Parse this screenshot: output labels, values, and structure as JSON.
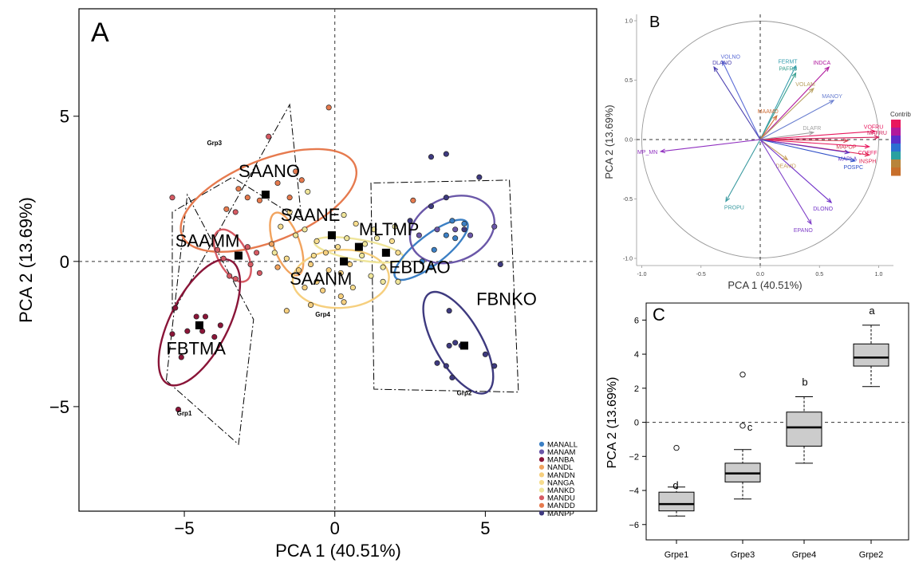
{
  "panel_labels": {
    "a": "A",
    "b": "B",
    "c": "C"
  },
  "colors": {
    "MANALL": "#3b7fc4",
    "MANAM": "#6a57a8",
    "MANBA": "#8a1538",
    "NANDL": "#f1a35e",
    "MANDN": "#f6cf7e",
    "NANGA": "#f7dd8e",
    "MANKD": "#efe59a",
    "MANDU": "#d65a63",
    "MANDD": "#e67a4e",
    "MANPP": "#3e3a7f",
    "centroid": "#000000"
  },
  "chart_data": [
    {
      "id": "pca-individuals",
      "type": "scatter",
      "title": "",
      "xlabel": "PCA 1 (40.51%)",
      "ylabel": "PCA 2 (13.69%)",
      "xlim": [
        -8.5,
        8.7
      ],
      "ylim": [
        -8.6,
        8.7
      ],
      "xticks": [
        -5,
        0,
        5
      ],
      "yticks": [
        -5,
        0,
        5
      ],
      "grid": false,
      "legend_position": "bottom-right",
      "legend": [
        "MANALL",
        "MANAM",
        "MANBA",
        "NANDL",
        "MANDN",
        "NANGA",
        "MANKD",
        "MANDU",
        "MANDD",
        "MANPP"
      ],
      "points": [
        {
          "x": -5.2,
          "y": -5.1,
          "c": "MANBA"
        },
        {
          "x": -5.4,
          "y": -2.5,
          "c": "MANBA"
        },
        {
          "x": -5.1,
          "y": -3.3,
          "c": "MANBA"
        },
        {
          "x": -4.9,
          "y": -2.4,
          "c": "MANBA"
        },
        {
          "x": -4.6,
          "y": -1.9,
          "c": "MANBA"
        },
        {
          "x": -4.3,
          "y": -1.9,
          "c": "MANBA"
        },
        {
          "x": -3.8,
          "y": -2.2,
          "c": "MANBA"
        },
        {
          "x": -5.3,
          "y": -1.6,
          "c": "MANBA"
        },
        {
          "x": -4.4,
          "y": -2.4,
          "c": "MANBA"
        },
        {
          "x": -4.0,
          "y": -2.6,
          "c": "MANBA"
        },
        {
          "x": -3.5,
          "y": -0.5,
          "c": "MANDU"
        },
        {
          "x": -3.7,
          "y": 0.1,
          "c": "MANDU"
        },
        {
          "x": -3.3,
          "y": -0.6,
          "c": "MANDU"
        },
        {
          "x": -2.8,
          "y": -0.1,
          "c": "MANDU"
        },
        {
          "x": -2.6,
          "y": 0.3,
          "c": "MANDU"
        },
        {
          "x": -2.9,
          "y": 0.5,
          "c": "MANDU"
        },
        {
          "x": -3.9,
          "y": 0.4,
          "c": "MANDU"
        },
        {
          "x": -2.5,
          "y": -0.4,
          "c": "MANDU"
        },
        {
          "x": -5.4,
          "y": 2.2,
          "c": "MANDU"
        },
        {
          "x": -3.6,
          "y": 1.8,
          "c": "MANDD"
        },
        {
          "x": -3.3,
          "y": 1.7,
          "c": "MANDU"
        },
        {
          "x": -2.9,
          "y": 2.2,
          "c": "MANDD"
        },
        {
          "x": -2.5,
          "y": 2.1,
          "c": "MANDD"
        },
        {
          "x": -2.2,
          "y": 4.3,
          "c": "MANDU"
        },
        {
          "x": -1.9,
          "y": 2.7,
          "c": "MANDD"
        },
        {
          "x": -1.3,
          "y": 3.1,
          "c": "MANDD"
        },
        {
          "x": -1.1,
          "y": 2.8,
          "c": "MANDD"
        },
        {
          "x": -1.5,
          "y": 2.2,
          "c": "MANDD"
        },
        {
          "x": -0.2,
          "y": 5.3,
          "c": "MANDD"
        },
        {
          "x": -3.2,
          "y": 2.5,
          "c": "MANDD"
        },
        {
          "x": -0.9,
          "y": 2.4,
          "c": "MANKD"
        },
        {
          "x": -1.5,
          "y": 1.7,
          "c": "NANGA"
        },
        {
          "x": -1.8,
          "y": 1.2,
          "c": "NANGA"
        },
        {
          "x": -1.3,
          "y": 0.9,
          "c": "MANKD"
        },
        {
          "x": -1.0,
          "y": 1.1,
          "c": "MANKD"
        },
        {
          "x": -0.6,
          "y": 0.7,
          "c": "NANGA"
        },
        {
          "x": -2.1,
          "y": 0.6,
          "c": "NANDL"
        },
        {
          "x": -1.9,
          "y": -0.2,
          "c": "NANDL"
        },
        {
          "x": -2.0,
          "y": 0.3,
          "c": "MANKD"
        },
        {
          "x": -1.6,
          "y": 0.1,
          "c": "NANGA"
        },
        {
          "x": -1.2,
          "y": -0.3,
          "c": "MANDN"
        },
        {
          "x": -0.8,
          "y": -0.1,
          "c": "MANDN"
        },
        {
          "x": -0.6,
          "y": -0.7,
          "c": "MANDN"
        },
        {
          "x": -1.0,
          "y": -0.9,
          "c": "MANDN"
        },
        {
          "x": -0.4,
          "y": -1.0,
          "c": "MANDN"
        },
        {
          "x": -0.2,
          "y": -0.3,
          "c": "MANDN"
        },
        {
          "x": 0.2,
          "y": -0.4,
          "c": "MANDN"
        },
        {
          "x": 0.5,
          "y": -0.1,
          "c": "MANDN"
        },
        {
          "x": -0.3,
          "y": 0.3,
          "c": "MANDN"
        },
        {
          "x": 0.1,
          "y": 0.5,
          "c": "NANGA"
        },
        {
          "x": 0.4,
          "y": 0.8,
          "c": "MANKD"
        },
        {
          "x": 0.7,
          "y": 1.3,
          "c": "NANGA"
        },
        {
          "x": 1.0,
          "y": 0.6,
          "c": "MANKD"
        },
        {
          "x": 0.9,
          "y": 0.2,
          "c": "MANKD"
        },
        {
          "x": 0.6,
          "y": -0.9,
          "c": "NANGA"
        },
        {
          "x": 0.2,
          "y": -1.2,
          "c": "MANDN"
        },
        {
          "x": -0.8,
          "y": -1.5,
          "c": "MANDN"
        },
        {
          "x": -1.6,
          "y": -1.7,
          "c": "MANDN"
        },
        {
          "x": 0.3,
          "y": -1.4,
          "c": "MANDN"
        },
        {
          "x": 1.4,
          "y": 0.8,
          "c": "MANKD"
        },
        {
          "x": 1.3,
          "y": 1.1,
          "c": "MANKD"
        },
        {
          "x": 1.6,
          "y": -0.2,
          "c": "MANKD"
        },
        {
          "x": 1.9,
          "y": 0.7,
          "c": "NANGA"
        },
        {
          "x": 1.2,
          "y": -0.5,
          "c": "MANKD"
        },
        {
          "x": 1.6,
          "y": -0.7,
          "c": "MANKD"
        },
        {
          "x": 2.1,
          "y": -0.7,
          "c": "MANKD"
        },
        {
          "x": 2.1,
          "y": 0.3,
          "c": "NANGA"
        },
        {
          "x": 0.3,
          "y": 1.6,
          "c": "MANKD"
        },
        {
          "x": -0.7,
          "y": 0.2,
          "c": "NANGA"
        },
        {
          "x": 2.0,
          "y": 1.2,
          "c": "MANKD"
        },
        {
          "x": 2.9,
          "y": 0.0,
          "c": "MANALL"
        },
        {
          "x": 3.3,
          "y": 0.4,
          "c": "MANALL"
        },
        {
          "x": 3.7,
          "y": 0.9,
          "c": "MANALL"
        },
        {
          "x": 3.9,
          "y": 1.4,
          "c": "MANALL"
        },
        {
          "x": 4.3,
          "y": 1.3,
          "c": "MANALL"
        },
        {
          "x": 3.2,
          "y": -0.2,
          "c": "MANALL"
        },
        {
          "x": 4.0,
          "y": 0.8,
          "c": "MANALL"
        },
        {
          "x": 2.6,
          "y": 2.1,
          "c": "MANDD"
        },
        {
          "x": 3.2,
          "y": 1.9,
          "c": "MANPP"
        },
        {
          "x": 3.7,
          "y": 2.2,
          "c": "MANPP"
        },
        {
          "x": 4.0,
          "y": 1.1,
          "c": "MANAM"
        },
        {
          "x": 4.5,
          "y": 0.9,
          "c": "MANAM"
        },
        {
          "x": 5.3,
          "y": 1.2,
          "c": "MANAM"
        },
        {
          "x": 3.2,
          "y": 3.6,
          "c": "MANPP"
        },
        {
          "x": 3.7,
          "y": 3.7,
          "c": "MANPP"
        },
        {
          "x": 4.8,
          "y": 2.9,
          "c": "MANPP"
        },
        {
          "x": 2.5,
          "y": 1.4,
          "c": "MANPP"
        },
        {
          "x": 4.3,
          "y": 1.1,
          "c": "MANPP"
        },
        {
          "x": 2.8,
          "y": 0.9,
          "c": "MANAM"
        },
        {
          "x": 3.4,
          "y": 1.1,
          "c": "MANAM"
        },
        {
          "x": 5.5,
          "y": -0.1,
          "c": "MANPP"
        },
        {
          "x": 3.8,
          "y": -1.7,
          "c": "MANPP"
        },
        {
          "x": 3.8,
          "y": -2.9,
          "c": "MANPP"
        },
        {
          "x": 4.0,
          "y": -2.8,
          "c": "MANPP"
        },
        {
          "x": 4.2,
          "y": -2.9,
          "c": "MANPP"
        },
        {
          "x": 3.7,
          "y": -3.6,
          "c": "MANPP"
        },
        {
          "x": 3.9,
          "y": -4.0,
          "c": "MANPP"
        },
        {
          "x": 5.0,
          "y": -3.2,
          "c": "MANPP"
        },
        {
          "x": 5.3,
          "y": -3.6,
          "c": "MANPP"
        },
        {
          "x": 3.4,
          "y": -3.5,
          "c": "MANPP"
        }
      ],
      "ellipses": [
        {
          "label": "SAANO",
          "cx": -2.2,
          "cy": 2.1,
          "rx": 3.1,
          "ry": 1.4,
          "angle": 22,
          "c": "MANDD"
        },
        {
          "label": "SAAMM",
          "cx": -3.4,
          "cy": 0.2,
          "rx": 0.95,
          "ry": 0.5,
          "angle": -62,
          "c": "MANDU"
        },
        {
          "label": "FBTMA",
          "cx": -4.5,
          "cy": -2.1,
          "rx": 2.3,
          "ry": 1.0,
          "angle": 63,
          "c": "MANBA"
        },
        {
          "label": "SAANE",
          "cx": -1.6,
          "cy": 0.6,
          "rx": 1.1,
          "ry": 0.45,
          "angle": -70,
          "c": "NANDL"
        },
        {
          "label": "SAANM",
          "cx": 0.2,
          "cy": -0.6,
          "rx": 1.6,
          "ry": 1.0,
          "angle": 3,
          "c": "MANDN"
        },
        {
          "label": "MLTMP",
          "cx": 0.8,
          "cy": 0.4,
          "rx": 1.5,
          "ry": 0.35,
          "angle": -10,
          "c": "MANKD"
        },
        {
          "label": "EBDAO",
          "cx": 3.2,
          "cy": 0.4,
          "rx": 1.5,
          "ry": 0.5,
          "angle": 38,
          "c": "MANALL"
        },
        {
          "label": "MANAM",
          "cx": 3.9,
          "cy": 1.1,
          "rx": 1.45,
          "ry": 1.1,
          "angle": 22,
          "c": "MANAM"
        },
        {
          "label": "FBNKO",
          "cx": 4.1,
          "cy": -2.8,
          "rx": 1.9,
          "ry": 0.8,
          "angle": -60,
          "c": "MANPP"
        }
      ],
      "centroids": [
        {
          "x": -2.3,
          "y": 2.3
        },
        {
          "x": -3.2,
          "y": 0.2
        },
        {
          "x": -4.5,
          "y": -2.2
        },
        {
          "x": -0.1,
          "y": 0.9
        },
        {
          "x": 0.8,
          "y": 0.5
        },
        {
          "x": 0.3,
          "y": 0.0
        },
        {
          "x": 1.7,
          "y": 0.3
        },
        {
          "x": 4.3,
          "y": -2.9
        }
      ],
      "labels": [
        {
          "text": "SAANO",
          "x": -3.2,
          "y": 2.9
        },
        {
          "text": "SAAMM",
          "x": -5.3,
          "y": 0.5
        },
        {
          "text": "SAANE",
          "x": -1.8,
          "y": 1.4
        },
        {
          "text": "MLTMP",
          "x": 0.8,
          "y": 0.9
        },
        {
          "text": "SAANM",
          "x": -1.5,
          "y": -0.8
        },
        {
          "text": "EBDAO",
          "x": 1.8,
          "y": -0.4
        },
        {
          "text": "FBNKO",
          "x": 4.7,
          "y": -1.5
        },
        {
          "text": "FBTMA",
          "x": -5.6,
          "y": -3.2
        }
      ],
      "groups": [
        {
          "label": "Grp1",
          "label_pos": [
            -5.0,
            -5.3
          ],
          "corners": [
            [
              -5.6,
              -4.1
            ],
            [
              -4.9,
              2.3
            ],
            [
              -2.7,
              -2.0
            ],
            [
              -3.2,
              -6.3
            ]
          ]
        },
        {
          "label": "Grp3",
          "label_pos": [
            -4.0,
            4.0
          ],
          "corners": [
            [
              -5.4,
              -1.8
            ],
            [
              -5.4,
              1.7
            ],
            [
              -3.4,
              2.9
            ],
            [
              -1.1,
              1.4
            ],
            [
              -1.5,
              5.4
            ]
          ]
        },
        {
          "label": "Grp4",
          "label_pos": [
            -0.4,
            -1.9
          ],
          "corners": []
        },
        {
          "label": "Grp2",
          "label_pos": [
            4.3,
            -4.6
          ],
          "corners": [
            [
              1.2,
              2.7
            ],
            [
              1.3,
              -4.4
            ],
            [
              6.1,
              -4.5
            ],
            [
              5.8,
              2.8
            ]
          ]
        }
      ]
    },
    {
      "id": "pca-variables",
      "type": "scatter",
      "title": "",
      "xlabel": "PCA 1 (40.51%)",
      "ylabel": "PCA 2 (13.69%)",
      "xlim": [
        -1.05,
        1.15
      ],
      "ylim": [
        -1.05,
        1.05
      ],
      "xticks": [
        "-1.0",
        "-0.5",
        "0.0",
        "0.5",
        "1.0"
      ],
      "yticks": [
        "1.0",
        "0.5",
        "0.0",
        "-0.5",
        "-1.0"
      ],
      "grid": false,
      "legend_title": "Contrib",
      "legend_position": "right",
      "legend_colors": [
        "#e8175d",
        "#b1199b",
        "#5a2ec9",
        "#2b6fd1",
        "#2aa0a0",
        "#b8843a",
        "#c86f2b"
      ],
      "arrows": [
        {
          "label": "VOLNO",
          "x": -0.32,
          "y": 0.66,
          "c": "#5b6cd6"
        },
        {
          "label": "DLANO",
          "x": -0.39,
          "y": 0.61,
          "c": "#4a3fb0"
        },
        {
          "label": "FERMT",
          "x": 0.3,
          "y": 0.62,
          "c": "#3aa0b0"
        },
        {
          "label": "PAFRU",
          "x": 0.3,
          "y": 0.56,
          "c": "#3aa090"
        },
        {
          "label": "INDCA",
          "x": 0.58,
          "y": 0.61,
          "c": "#b01a9e"
        },
        {
          "label": "VOLAM",
          "x": 0.45,
          "y": 0.43,
          "c": "#b8a060"
        },
        {
          "label": "MAAMD",
          "x": 0.14,
          "y": 0.2,
          "c": "#d0703a"
        },
        {
          "label": "MANOY",
          "x": 0.62,
          "y": 0.33,
          "c": "#6a7fd0"
        },
        {
          "label": "VOFRU",
          "x": 0.97,
          "y": 0.07,
          "c": "#e8175d"
        },
        {
          "label": "MAFRU",
          "x": 1.0,
          "y": 0.02,
          "c": "#d0205a"
        },
        {
          "label": "DLAFR",
          "x": 0.45,
          "y": 0.06,
          "c": "#a0a0a0"
        },
        {
          "label": "MAPOP",
          "x": 0.74,
          "y": -0.01,
          "c": "#d04050"
        },
        {
          "label": "COEFF",
          "x": 0.92,
          "y": -0.06,
          "c": "#e8175d"
        },
        {
          "label": "INSPH",
          "x": 0.92,
          "y": -0.13,
          "c": "#e02050"
        },
        {
          "label": "MAPLA",
          "x": 0.75,
          "y": -0.11,
          "c": "#6030c0"
        },
        {
          "label": "POSPC",
          "x": 0.8,
          "y": -0.18,
          "c": "#3050c8"
        },
        {
          "label": "DEAMD",
          "x": 0.23,
          "y": -0.17,
          "c": "#c8a060"
        },
        {
          "label": "DLONO",
          "x": 0.6,
          "y": -0.53,
          "c": "#7030c8"
        },
        {
          "label": "EPANO",
          "x": 0.43,
          "y": -0.71,
          "c": "#8040c8"
        },
        {
          "label": "PROPU",
          "x": -0.29,
          "y": -0.52,
          "c": "#3a9aa0"
        },
        {
          "label": "MP_MN",
          "x": -0.84,
          "y": -0.1,
          "c": "#9030c0"
        }
      ]
    },
    {
      "id": "boxplot-pca2",
      "type": "box",
      "title": "",
      "xlabel": "",
      "ylabel": "PCA 2 (13.69%)",
      "ylim": [
        -6.9,
        7.0
      ],
      "yticks": [
        -6,
        -4,
        -2,
        0,
        2,
        4,
        6
      ],
      "reference_line": 0,
      "categories": [
        "Grpe1",
        "Grpe3",
        "Grpe4",
        "Grpe2"
      ],
      "series": [
        {
          "category": "Grpe1",
          "min": -5.5,
          "q1": -5.2,
          "median": -4.8,
          "q3": -4.1,
          "max": -3.8,
          "outliers": [
            -1.5
          ],
          "letter": "d"
        },
        {
          "category": "Grpe3",
          "min": -4.5,
          "q1": -3.5,
          "median": -3.0,
          "q3": -2.4,
          "max": -1.6,
          "outliers": [
            2.8,
            -0.2
          ],
          "letter": "c"
        },
        {
          "category": "Grpe4",
          "min": -2.4,
          "q1": -1.4,
          "median": -0.3,
          "q3": 0.6,
          "max": 1.5,
          "outliers": [],
          "letter": "b"
        },
        {
          "category": "Grpe2",
          "min": 2.1,
          "q1": 3.3,
          "median": 3.8,
          "q3": 4.6,
          "max": 5.7,
          "outliers": [],
          "letter": "a"
        }
      ]
    }
  ]
}
